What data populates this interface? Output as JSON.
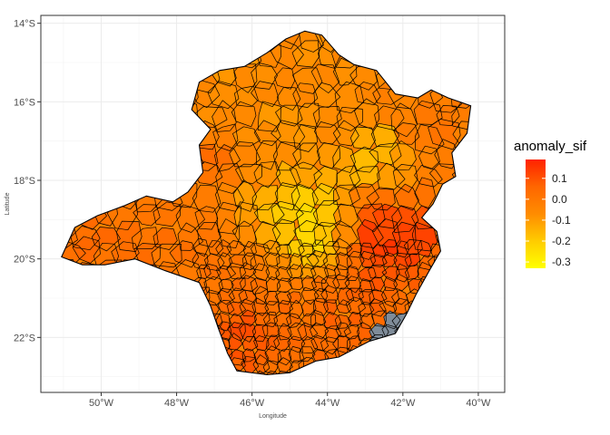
{
  "chart_data": {
    "type": "choropleth",
    "xlabel": "Longitude",
    "ylabel": "Latitude",
    "xlim": [
      -51.6,
      -39.3
    ],
    "ylim": [
      -23.4,
      -13.8
    ],
    "x_ticks": [
      {
        "value": -50,
        "label": "50°W"
      },
      {
        "value": -48,
        "label": "48°W"
      },
      {
        "value": -46,
        "label": "46°W"
      },
      {
        "value": -44,
        "label": "44°W"
      },
      {
        "value": -42,
        "label": "42°W"
      },
      {
        "value": -40,
        "label": "40°W"
      }
    ],
    "y_ticks": [
      {
        "value": -14,
        "label": "14°S"
      },
      {
        "value": -16,
        "label": "16°S"
      },
      {
        "value": -18,
        "label": "18°S"
      },
      {
        "value": -20,
        "label": "20°S"
      },
      {
        "value": -22,
        "label": "22°S"
      }
    ],
    "grid": true,
    "legend": {
      "title": "anomaly_sif",
      "placement": "right",
      "min": -0.33,
      "max": 0.19,
      "breaks": [
        {
          "value": 0.1,
          "label": "0.1"
        },
        {
          "value": 0.0,
          "label": "0.0"
        },
        {
          "value": -0.1,
          "label": "-0.1"
        },
        {
          "value": -0.2,
          "label": "-0.2"
        },
        {
          "value": -0.3,
          "label": "-0.3"
        }
      ],
      "colors": [
        "#ffff00",
        "#ffcc00",
        "#ff8c00",
        "#ff6600",
        "#ff2200"
      ]
    },
    "na_color": "#7f8c99",
    "region_outline": [
      [
        -51.05,
        -19.95
      ],
      [
        -50.7,
        -19.2
      ],
      [
        -50.1,
        -18.9
      ],
      [
        -49.4,
        -18.65
      ],
      [
        -48.8,
        -18.4
      ],
      [
        -48.1,
        -18.55
      ],
      [
        -47.7,
        -18.3
      ],
      [
        -47.3,
        -17.8
      ],
      [
        -47.4,
        -17.1
      ],
      [
        -47.1,
        -16.7
      ],
      [
        -47.6,
        -16.2
      ],
      [
        -47.4,
        -15.5
      ],
      [
        -46.85,
        -15.2
      ],
      [
        -46.2,
        -15.1
      ],
      [
        -45.6,
        -14.75
      ],
      [
        -45.1,
        -14.4
      ],
      [
        -44.6,
        -14.2
      ],
      [
        -44.15,
        -14.3
      ],
      [
        -43.7,
        -14.8
      ],
      [
        -43.3,
        -15.05
      ],
      [
        -42.7,
        -15.2
      ],
      [
        -42.2,
        -15.8
      ],
      [
        -41.6,
        -15.9
      ],
      [
        -41.25,
        -15.7
      ],
      [
        -40.8,
        -15.9
      ],
      [
        -40.2,
        -16.1
      ],
      [
        -40.3,
        -16.8
      ],
      [
        -40.7,
        -17.3
      ],
      [
        -40.6,
        -17.9
      ],
      [
        -40.95,
        -18.1
      ],
      [
        -41.2,
        -18.6
      ],
      [
        -41.5,
        -18.95
      ],
      [
        -41.1,
        -19.3
      ],
      [
        -41.0,
        -19.8
      ],
      [
        -41.3,
        -20.3
      ],
      [
        -41.65,
        -20.9
      ],
      [
        -41.9,
        -21.4
      ],
      [
        -42.2,
        -21.9
      ],
      [
        -42.9,
        -22.1
      ],
      [
        -43.7,
        -22.5
      ],
      [
        -44.3,
        -22.6
      ],
      [
        -45.0,
        -22.9
      ],
      [
        -45.6,
        -22.95
      ],
      [
        -46.4,
        -22.85
      ],
      [
        -46.65,
        -22.4
      ],
      [
        -46.9,
        -21.75
      ],
      [
        -47.1,
        -21.2
      ],
      [
        -47.4,
        -20.6
      ],
      [
        -48.3,
        -20.3
      ],
      [
        -49.1,
        -20.0
      ],
      [
        -49.9,
        -20.15
      ],
      [
        -50.5,
        -20.15
      ],
      [
        -51.05,
        -19.95
      ]
    ],
    "anomaly_zones": [
      {
        "lon": -42.5,
        "lat": -19.7,
        "radius": 0.7,
        "value": 0.19
      },
      {
        "lon": -42.2,
        "lat": -19.2,
        "radius": 0.6,
        "value": 0.15
      },
      {
        "lon": -46.2,
        "lat": -21.9,
        "radius": 0.55,
        "value": 0.17
      },
      {
        "lon": -46.9,
        "lat": -17.4,
        "radius": 0.35,
        "value": 0.12
      },
      {
        "lon": -44.7,
        "lat": -19.3,
        "radius": 0.75,
        "value": -0.32
      },
      {
        "lon": -44.2,
        "lat": -19.7,
        "radius": 0.4,
        "value": -0.3
      },
      {
        "lon": -42.6,
        "lat": -17.6,
        "radius": 0.55,
        "value": -0.22
      },
      {
        "lon": -42.8,
        "lat": -17.1,
        "radius": 0.35,
        "value": -0.18
      },
      {
        "lon": -45.5,
        "lat": -18.6,
        "radius": 0.5,
        "value": -0.14
      },
      {
        "lon": -48.5,
        "lat": -19.0,
        "radius": 1.3,
        "value": 0.03
      },
      {
        "lon": -50.3,
        "lat": -19.5,
        "radius": 0.9,
        "value": 0.05
      },
      {
        "lon": -44.0,
        "lat": -15.2,
        "radius": 1.4,
        "value": -0.07
      },
      {
        "lon": -45.6,
        "lat": -16.2,
        "radius": 1.0,
        "value": -0.09
      },
      {
        "lon": -41.3,
        "lat": -16.5,
        "radius": 0.7,
        "value": 0.02
      },
      {
        "lon": -44.5,
        "lat": -21.6,
        "radius": 1.0,
        "value": 0.06
      },
      {
        "lon": -46.0,
        "lat": -20.7,
        "radius": 0.9,
        "value": 0.04
      },
      {
        "lon": -43.3,
        "lat": -21.2,
        "radius": 0.8,
        "value": 0.08
      }
    ],
    "baseline_value": -0.04,
    "na_zones": [
      {
        "lon": -42.3,
        "lat": -21.75,
        "radius": 0.35
      },
      {
        "lon": -42.7,
        "lat": -21.9,
        "radius": 0.25
      }
    ]
  }
}
